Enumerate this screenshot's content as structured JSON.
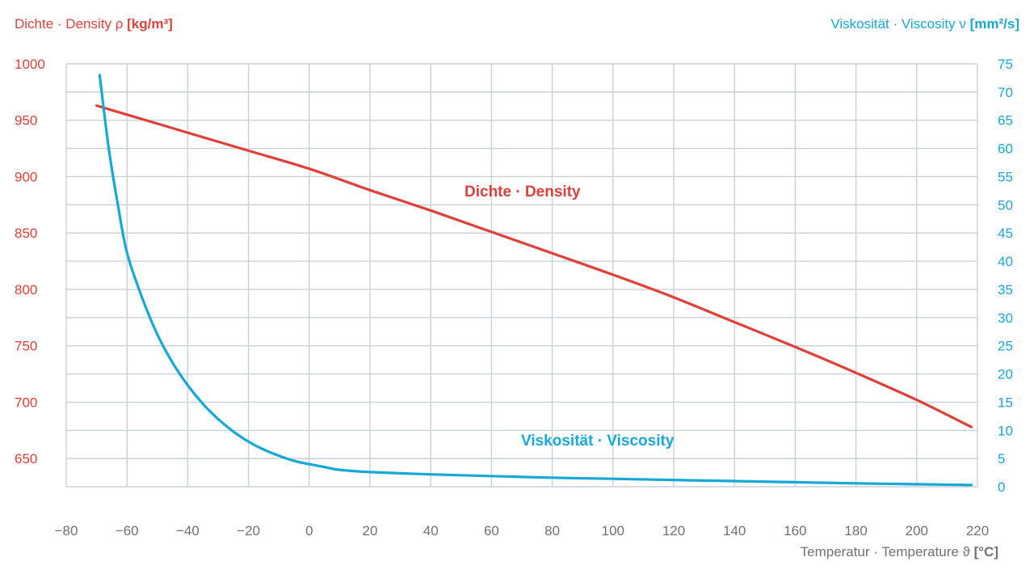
{
  "chart_data": {
    "type": "line",
    "title": "",
    "xlabel": {
      "text": "Temperatur · Temperature ϑ",
      "unit": "[°C]"
    },
    "ylabel_left": {
      "text": "Dichte · Density ρ",
      "unit": "[kg/m³]"
    },
    "ylabel_right": {
      "text": "Viskosität · Viscosity ν",
      "unit": "[mm²/s]"
    },
    "xlim": [
      -80,
      220
    ],
    "ylim_left": [
      625,
      1000
    ],
    "ylim_right": [
      0,
      75
    ],
    "x_ticks": [
      "−80",
      "−60",
      "−40",
      "−20",
      "0",
      "20",
      "40",
      "60",
      "80",
      "100",
      "120",
      "140",
      "160",
      "180",
      "200",
      "220"
    ],
    "y_ticks_left": [
      "1000",
      "950",
      "900",
      "850",
      "800",
      "750",
      "700",
      "650"
    ],
    "y_ticks_right": [
      "75",
      "70",
      "65",
      "60",
      "55",
      "50",
      "45",
      "40",
      "35",
      "30",
      "25",
      "20",
      "15",
      "10",
      "5",
      "0"
    ],
    "grid": true,
    "colors": {
      "density": "#e0403a",
      "viscosity": "#18a8d8",
      "grid": "#c9d0d6",
      "x_ticks": "#6d7278"
    },
    "series": [
      {
        "name": "Dichte · Density",
        "axis": "left",
        "x": [
          -70,
          -60,
          -40,
          -20,
          0,
          20,
          40,
          60,
          80,
          100,
          120,
          140,
          160,
          180,
          200,
          218
        ],
        "values": [
          963,
          955,
          939,
          923,
          907,
          888,
          870,
          851,
          832,
          813,
          793,
          771,
          749,
          726,
          702,
          678
        ]
      },
      {
        "name": "Viskosität · Viscosity",
        "axis": "right",
        "x": [
          -69,
          -66,
          -63,
          -60,
          -55,
          -50,
          -45,
          -40,
          -35,
          -30,
          -25,
          -20,
          -15,
          -10,
          -5,
          0,
          5,
          10,
          20,
          40,
          60,
          80,
          100,
          120,
          140,
          160,
          180,
          200,
          218
        ],
        "values": [
          73,
          60,
          50,
          41.5,
          33.5,
          27,
          22,
          18,
          14.7,
          12,
          9.8,
          8.0,
          6.6,
          5.5,
          4.6,
          4.0,
          3.5,
          3.0,
          2.6,
          2.2,
          1.9,
          1.6,
          1.4,
          1.2,
          1.0,
          0.8,
          0.6,
          0.45,
          0.3
        ]
      }
    ]
  }
}
